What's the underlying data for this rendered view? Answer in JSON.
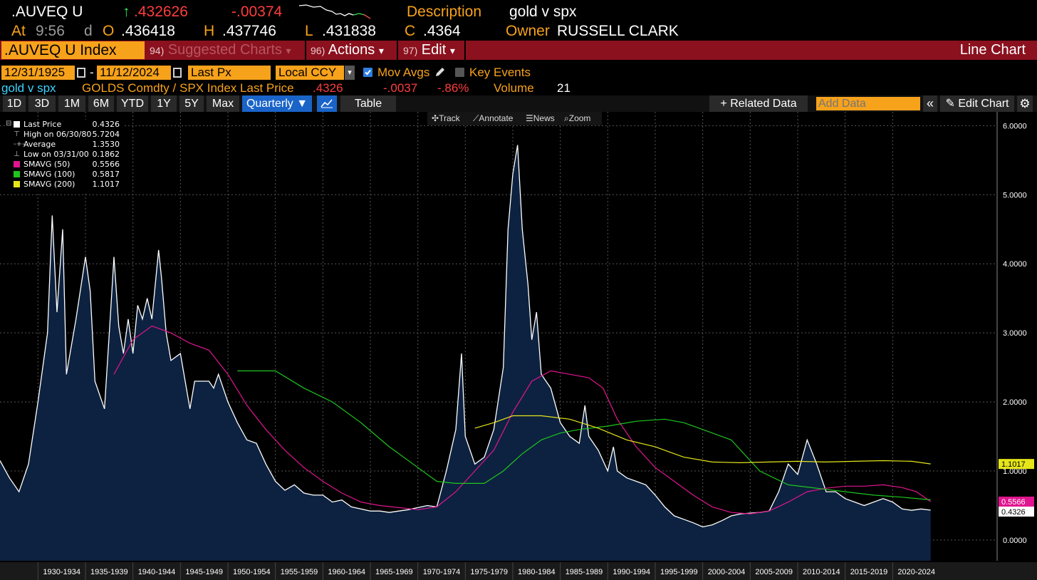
{
  "header": {
    "ticker": ".AUVEQ U",
    "last_arrow": "↑",
    "last": ".432626",
    "change": "-.00374",
    "at_label": "At",
    "at_time": "9:56",
    "d_label": "d",
    "open_label": "O",
    "open": ".436418",
    "high_label": "H",
    "high": ".437746",
    "low_label": "L",
    "low": ".431838",
    "close_label": "C",
    "close": ".4364",
    "description_label": "Description",
    "description": "gold v spx",
    "owner_label": "Owner",
    "owner": "RUSSELL CLARK"
  },
  "toolbar": {
    "security": ".AUVEQ U Index",
    "suggested_num": "94)",
    "suggested": "Suggested Charts",
    "actions_num": "96)",
    "actions": "Actions",
    "edit_num": "97)",
    "edit": "Edit",
    "chart_type": "Line Chart",
    "caret": "▾"
  },
  "daterow": {
    "start_date": "12/31/1925",
    "dash": "-",
    "end_date": "11/12/2024",
    "field": "Last Px",
    "currency": "Local CCY",
    "mov_avgs": "Mov Avgs",
    "key_events": "Key Events"
  },
  "inforow": {
    "name": "gold v spx",
    "formula": "GOLDS Comdty / SPX Index Last Price",
    "last": ".4326",
    "change": "-.0037",
    "pct": "-.86%",
    "volume_label": "Volume",
    "volume": "21"
  },
  "periods": {
    "p1d": "1D",
    "p3d": "3D",
    "p1m": "1M",
    "p6m": "6M",
    "pytd": "YTD",
    "p1y": "1Y",
    "p5y": "5Y",
    "pmax": "Max",
    "frequency": "Quarterly ▼",
    "table": "Table",
    "related": "+ Related Data",
    "add_data_placeholder": "Add Data",
    "collapse": "«",
    "edit_chart": "Edit Chart"
  },
  "chart_tools": {
    "track": "Track",
    "annotate": "Annotate",
    "news": "News",
    "zoom": "Zoom"
  },
  "legend": {
    "last_price_label": "Last Price",
    "last_price": "0.4326",
    "high_label": "High on 06/30/80",
    "high": "5.7204",
    "average_label": "Average",
    "average": "1.3530",
    "low_label": "Low on 03/31/00",
    "low": "0.1862",
    "sma50_label": "SMAVG (50)",
    "sma50": "0.5566",
    "sma100_label": "SMAVG (100)",
    "sma100": "0.5817",
    "sma200_label": "SMAVG (200)",
    "sma200": "1.1017"
  },
  "colors": {
    "price": "#ffffff",
    "area_fill": "#0d2240",
    "sma50": "#e0158f",
    "sma100": "#1ec51e",
    "sma200": "#e5e51a",
    "accent_orange": "#f7a21b",
    "toolbar_red": "#8b111e"
  },
  "chart_data": {
    "type": "line",
    "y_axis_ticks": [
      "6.0000",
      "5.0000",
      "4.0000",
      "3.0000",
      "2.0000",
      "1.0000",
      "0.0000"
    ],
    "ylim": [
      -0.3,
      6.2
    ],
    "x_axis_labels": [
      "1930-1934",
      "1935-1939",
      "1940-1944",
      "1945-1949",
      "1950-1954",
      "1955-1959",
      "1960-1964",
      "1965-1969",
      "1970-1974",
      "1975-1979",
      "1980-1984",
      "1985-1989",
      "1990-1994",
      "1995-1999",
      "2000-2004",
      "2005-2009",
      "2010-2014",
      "2015-2019",
      "2020-2024"
    ],
    "xlim": [
      1926,
      2031
    ],
    "last_value_tags": {
      "sma200": "1.1017",
      "sma50": "0.5566",
      "last": "0.4326"
    },
    "series": [
      {
        "name": "Last Price",
        "points": [
          [
            1926,
            1.15
          ],
          [
            1927,
            0.9
          ],
          [
            1928,
            0.7
          ],
          [
            1929,
            1.1
          ],
          [
            1930,
            2.0
          ],
          [
            1931,
            3.0
          ],
          [
            1931.5,
            4.7
          ],
          [
            1932,
            3.3
          ],
          [
            1932.6,
            4.5
          ],
          [
            1933,
            2.4
          ],
          [
            1934,
            3.2
          ],
          [
            1935,
            4.1
          ],
          [
            1935.5,
            3.6
          ],
          [
            1936,
            2.3
          ],
          [
            1937,
            1.9
          ],
          [
            1937.6,
            3.2
          ],
          [
            1938,
            4.1
          ],
          [
            1938.5,
            3.1
          ],
          [
            1939,
            2.7
          ],
          [
            1939.5,
            3.2
          ],
          [
            1940,
            2.7
          ],
          [
            1940.5,
            3.4
          ],
          [
            1941,
            3.2
          ],
          [
            1941.5,
            3.5
          ],
          [
            1942,
            3.2
          ],
          [
            1942.7,
            4.2
          ],
          [
            1943,
            3.8
          ],
          [
            1943.5,
            3.0
          ],
          [
            1944,
            2.6
          ],
          [
            1945,
            2.7
          ],
          [
            1945.5,
            2.3
          ],
          [
            1946,
            1.9
          ],
          [
            1946.5,
            2.3
          ],
          [
            1947,
            2.3
          ],
          [
            1948,
            2.3
          ],
          [
            1948.5,
            2.2
          ],
          [
            1949,
            2.4
          ],
          [
            1950,
            2.0
          ],
          [
            1951,
            1.7
          ],
          [
            1952,
            1.45
          ],
          [
            1953,
            1.4
          ],
          [
            1954,
            1.1
          ],
          [
            1955,
            0.85
          ],
          [
            1956,
            0.72
          ],
          [
            1957,
            0.8
          ],
          [
            1958,
            0.68
          ],
          [
            1959,
            0.65
          ],
          [
            1960,
            0.65
          ],
          [
            1961,
            0.55
          ],
          [
            1962,
            0.58
          ],
          [
            1963,
            0.48
          ],
          [
            1964,
            0.45
          ],
          [
            1965,
            0.42
          ],
          [
            1966,
            0.42
          ],
          [
            1967,
            0.4
          ],
          [
            1968,
            0.42
          ],
          [
            1969,
            0.44
          ],
          [
            1970,
            0.47
          ],
          [
            1971,
            0.5
          ],
          [
            1972,
            0.48
          ],
          [
            1973,
            1.0
          ],
          [
            1974,
            1.6
          ],
          [
            1974.6,
            2.7
          ],
          [
            1975,
            1.5
          ],
          [
            1976,
            1.1
          ],
          [
            1977,
            1.2
          ],
          [
            1978,
            1.6
          ],
          [
            1979,
            2.5
          ],
          [
            1979.5,
            4.5
          ],
          [
            1980,
            5.3
          ],
          [
            1980.5,
            5.72
          ],
          [
            1981,
            4.5
          ],
          [
            1981.6,
            3.7
          ],
          [
            1982,
            2.9
          ],
          [
            1982.5,
            3.3
          ],
          [
            1983,
            2.4
          ],
          [
            1984,
            2.2
          ],
          [
            1985,
            1.7
          ],
          [
            1986,
            1.5
          ],
          [
            1987,
            1.4
          ],
          [
            1987.6,
            1.95
          ],
          [
            1988,
            1.5
          ],
          [
            1989,
            1.3
          ],
          [
            1990,
            1.0
          ],
          [
            1990.6,
            1.35
          ],
          [
            1991,
            1.0
          ],
          [
            1992,
            0.9
          ],
          [
            1993,
            0.85
          ],
          [
            1994,
            0.8
          ],
          [
            1995,
            0.65
          ],
          [
            1996,
            0.48
          ],
          [
            1997,
            0.35
          ],
          [
            1998,
            0.3
          ],
          [
            1999,
            0.25
          ],
          [
            2000,
            0.19
          ],
          [
            2001,
            0.22
          ],
          [
            2002,
            0.28
          ],
          [
            2003,
            0.35
          ],
          [
            2004,
            0.38
          ],
          [
            2005,
            0.39
          ],
          [
            2006,
            0.4
          ],
          [
            2007,
            0.42
          ],
          [
            2008,
            0.7
          ],
          [
            2009,
            1.1
          ],
          [
            2010,
            0.95
          ],
          [
            2011,
            1.45
          ],
          [
            2012,
            1.1
          ],
          [
            2013,
            0.7
          ],
          [
            2014,
            0.7
          ],
          [
            2015,
            0.6
          ],
          [
            2016,
            0.55
          ],
          [
            2017,
            0.5
          ],
          [
            2018,
            0.55
          ],
          [
            2019,
            0.6
          ],
          [
            2020,
            0.55
          ],
          [
            2021,
            0.45
          ],
          [
            2022,
            0.43
          ],
          [
            2023,
            0.45
          ],
          [
            2024,
            0.4326
          ]
        ]
      },
      {
        "name": "SMAVG (50)",
        "points": [
          [
            1938,
            2.4
          ],
          [
            1940,
            2.9
          ],
          [
            1942,
            3.1
          ],
          [
            1944,
            3.0
          ],
          [
            1946,
            2.85
          ],
          [
            1948,
            2.75
          ],
          [
            1950,
            2.4
          ],
          [
            1952,
            1.95
          ],
          [
            1954,
            1.6
          ],
          [
            1956,
            1.3
          ],
          [
            1958,
            1.05
          ],
          [
            1960,
            0.85
          ],
          [
            1962,
            0.68
          ],
          [
            1964,
            0.55
          ],
          [
            1966,
            0.5
          ],
          [
            1968,
            0.47
          ],
          [
            1970,
            0.44
          ],
          [
            1972,
            0.48
          ],
          [
            1974,
            0.7
          ],
          [
            1976,
            1.0
          ],
          [
            1978,
            1.3
          ],
          [
            1980,
            1.85
          ],
          [
            1982,
            2.3
          ],
          [
            1984,
            2.45
          ],
          [
            1986,
            2.4
          ],
          [
            1988,
            2.35
          ],
          [
            1989.5,
            2.2
          ],
          [
            1991,
            1.75
          ],
          [
            1993,
            1.35
          ],
          [
            1995,
            1.05
          ],
          [
            1997,
            0.85
          ],
          [
            1999,
            0.65
          ],
          [
            2001,
            0.48
          ],
          [
            2003,
            0.4
          ],
          [
            2005,
            0.38
          ],
          [
            2007,
            0.42
          ],
          [
            2009,
            0.55
          ],
          [
            2011,
            0.7
          ],
          [
            2013,
            0.75
          ],
          [
            2015,
            0.78
          ],
          [
            2017,
            0.78
          ],
          [
            2019,
            0.8
          ],
          [
            2021,
            0.76
          ],
          [
            2022.5,
            0.7
          ],
          [
            2024,
            0.5566
          ]
        ]
      },
      {
        "name": "SMAVG (100)",
        "points": [
          [
            1951,
            2.45
          ],
          [
            1955,
            2.45
          ],
          [
            1958,
            2.2
          ],
          [
            1961,
            2.0
          ],
          [
            1964,
            1.7
          ],
          [
            1967,
            1.35
          ],
          [
            1970,
            1.05
          ],
          [
            1972,
            0.85
          ],
          [
            1974,
            0.82
          ],
          [
            1977,
            0.82
          ],
          [
            1979,
            1.0
          ],
          [
            1981,
            1.25
          ],
          [
            1983,
            1.45
          ],
          [
            1985,
            1.55
          ],
          [
            1987,
            1.6
          ],
          [
            1990,
            1.65
          ],
          [
            1993,
            1.72
          ],
          [
            1996,
            1.75
          ],
          [
            1998,
            1.7
          ],
          [
            2000,
            1.6
          ],
          [
            2003,
            1.45
          ],
          [
            2006,
            1.0
          ],
          [
            2009,
            0.8
          ],
          [
            2012,
            0.75
          ],
          [
            2015,
            0.7
          ],
          [
            2018,
            0.65
          ],
          [
            2021,
            0.62
          ],
          [
            2024,
            0.5817
          ]
        ]
      },
      {
        "name": "SMAVG (200)",
        "points": [
          [
            1976,
            1.62
          ],
          [
            1978,
            1.7
          ],
          [
            1980,
            1.8
          ],
          [
            1983,
            1.8
          ],
          [
            1986,
            1.75
          ],
          [
            1989,
            1.62
          ],
          [
            1992,
            1.45
          ],
          [
            1995,
            1.35
          ],
          [
            1998,
            1.2
          ],
          [
            2001,
            1.13
          ],
          [
            2004,
            1.12
          ],
          [
            2007,
            1.13
          ],
          [
            2010,
            1.14
          ],
          [
            2013,
            1.13
          ],
          [
            2016,
            1.14
          ],
          [
            2019,
            1.15
          ],
          [
            2022,
            1.14
          ],
          [
            2024,
            1.1017
          ]
        ]
      }
    ]
  }
}
